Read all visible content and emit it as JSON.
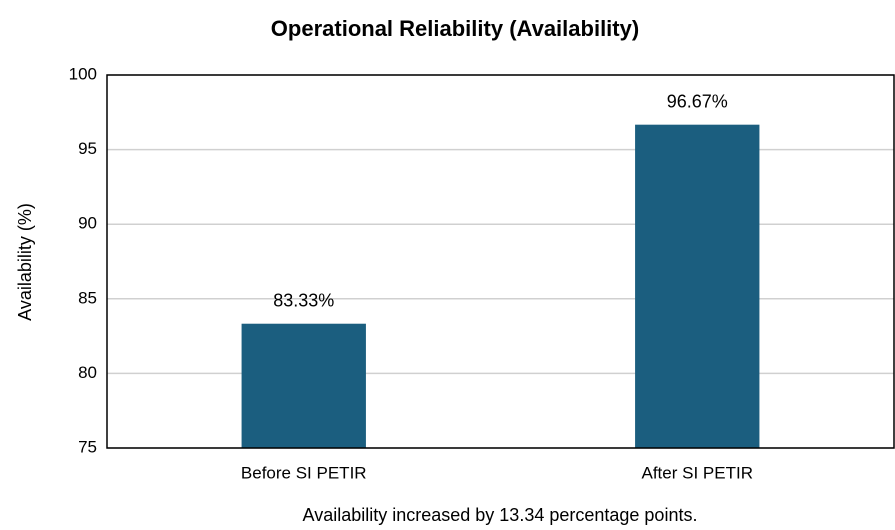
{
  "chart_data": {
    "type": "bar",
    "title": "Operational Reliability (Availability)",
    "y_label": "Availability (%)",
    "annotation": "Availability increased by 13.34 percentage points.",
    "categories": [
      "Before SI PETIR",
      "After SI PETIR"
    ],
    "values": [
      83.33,
      96.67
    ],
    "value_labels": [
      "83.33%",
      "96.67%"
    ],
    "color": "#1b5e7f",
    "ylim": [
      75,
      100
    ],
    "yticks": [
      75,
      80,
      85,
      90,
      95,
      100
    ],
    "grid": true
  }
}
